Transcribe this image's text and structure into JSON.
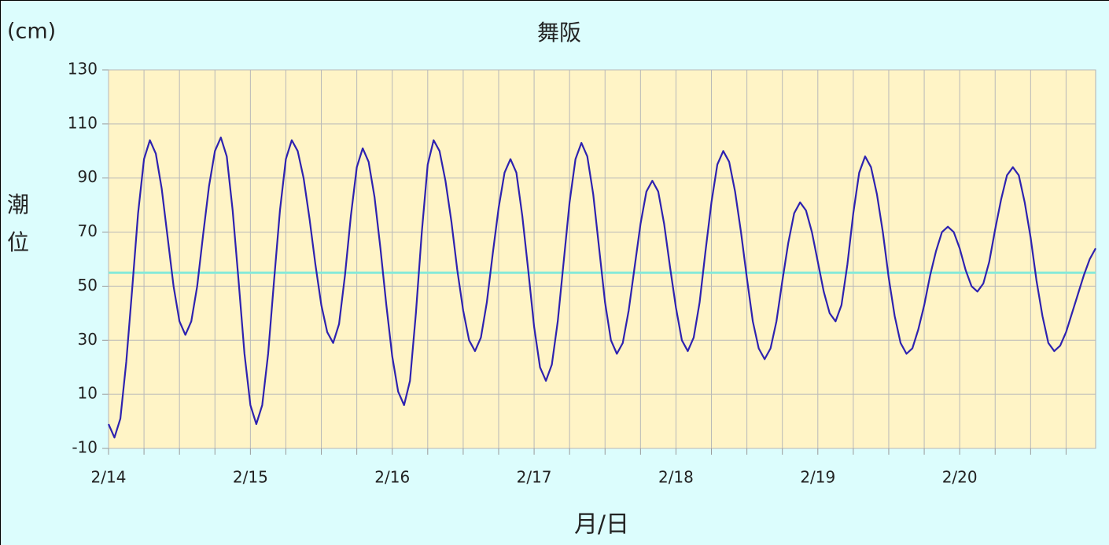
{
  "chart_data": {
    "type": "line",
    "title": "舞阪",
    "unit_label": "(cm)",
    "y_label": "潮位",
    "x_label": "月/日",
    "x": [
      0,
      1,
      2,
      3,
      4,
      5,
      6,
      7,
      8,
      9,
      10,
      11,
      12,
      13,
      14,
      15,
      16,
      17,
      18,
      19,
      20,
      21,
      22,
      23,
      24,
      25,
      26,
      27,
      28,
      29,
      30,
      31,
      32,
      33,
      34,
      35,
      36,
      37,
      38,
      39,
      40,
      41,
      42,
      43,
      44,
      45,
      46,
      47,
      48,
      49,
      50,
      51,
      52,
      53,
      54,
      55,
      56,
      57,
      58,
      59,
      60,
      61,
      62,
      63,
      64,
      65,
      66,
      67,
      68,
      69,
      70,
      71,
      72,
      73,
      74,
      75,
      76,
      77,
      78,
      79,
      80,
      81,
      82,
      83,
      84,
      85,
      86,
      87,
      88,
      89,
      90,
      91,
      92,
      93,
      94,
      95,
      96,
      97,
      98,
      99,
      100,
      101,
      102,
      103,
      104,
      105,
      106,
      107,
      108,
      109,
      110,
      111,
      112,
      113,
      114,
      115,
      116,
      117,
      118,
      119,
      120,
      121,
      122,
      123,
      124,
      125,
      126,
      127,
      128,
      129,
      130,
      131,
      132,
      133,
      134,
      135,
      136,
      137,
      138,
      139,
      140,
      141,
      142,
      143,
      144,
      145,
      146,
      147,
      148,
      149,
      150,
      151,
      152,
      153,
      154,
      155,
      156,
      157,
      158,
      159,
      160,
      161,
      162,
      163,
      164,
      165,
      166,
      167
    ],
    "values": [
      -1,
      -6,
      1,
      22,
      49,
      77,
      97,
      104,
      99,
      86,
      68,
      50,
      37,
      32,
      37,
      50,
      69,
      87,
      100,
      105,
      98,
      78,
      52,
      25,
      6,
      -1,
      6,
      25,
      52,
      78,
      97,
      104,
      100,
      90,
      75,
      58,
      43,
      33,
      29,
      36,
      54,
      76,
      94,
      101,
      96,
      83,
      64,
      43,
      24,
      11,
      6,
      15,
      40,
      70,
      95,
      104,
      100,
      89,
      74,
      56,
      41,
      30,
      26,
      31,
      44,
      62,
      79,
      92,
      97,
      92,
      76,
      56,
      35,
      20,
      15,
      21,
      37,
      59,
      81,
      97,
      103,
      98,
      84,
      64,
      44,
      30,
      25,
      29,
      41,
      57,
      73,
      85,
      89,
      85,
      73,
      57,
      42,
      30,
      26,
      31,
      44,
      63,
      81,
      95,
      100,
      96,
      85,
      70,
      53,
      37,
      27,
      23,
      27,
      37,
      52,
      66,
      77,
      81,
      78,
      70,
      59,
      48,
      40,
      37,
      43,
      58,
      77,
      92,
      98,
      94,
      84,
      70,
      53,
      39,
      29,
      25,
      27,
      34,
      43,
      54,
      63,
      70,
      72,
      70,
      64,
      56,
      50,
      48,
      51,
      59,
      71,
      82,
      91,
      94,
      91,
      81,
      68,
      52,
      39,
      29,
      26,
      28,
      33,
      40,
      47,
      54,
      60,
      64
    ],
    "color": "#2e22b0",
    "ref_line": {
      "value": 55,
      "color": "#86ead8"
    },
    "xlim": [
      0,
      167
    ],
    "xticks": [
      {
        "value": 0,
        "label": "2/14"
      },
      {
        "value": 24,
        "label": "2/15"
      },
      {
        "value": 48,
        "label": "2/16"
      },
      {
        "value": 72,
        "label": "2/17"
      },
      {
        "value": 96,
        "label": "2/18"
      },
      {
        "value": 120,
        "label": "2/19"
      },
      {
        "value": 144,
        "label": "2/20"
      }
    ],
    "xminor": [
      6,
      12,
      18,
      30,
      36,
      42,
      54,
      60,
      66,
      78,
      84,
      90,
      102,
      108,
      114,
      126,
      132,
      138,
      150,
      156,
      162
    ],
    "ylim": [
      -10,
      130
    ],
    "yticks": [
      -10,
      10,
      30,
      50,
      70,
      90,
      110,
      130
    ],
    "grid": true
  }
}
